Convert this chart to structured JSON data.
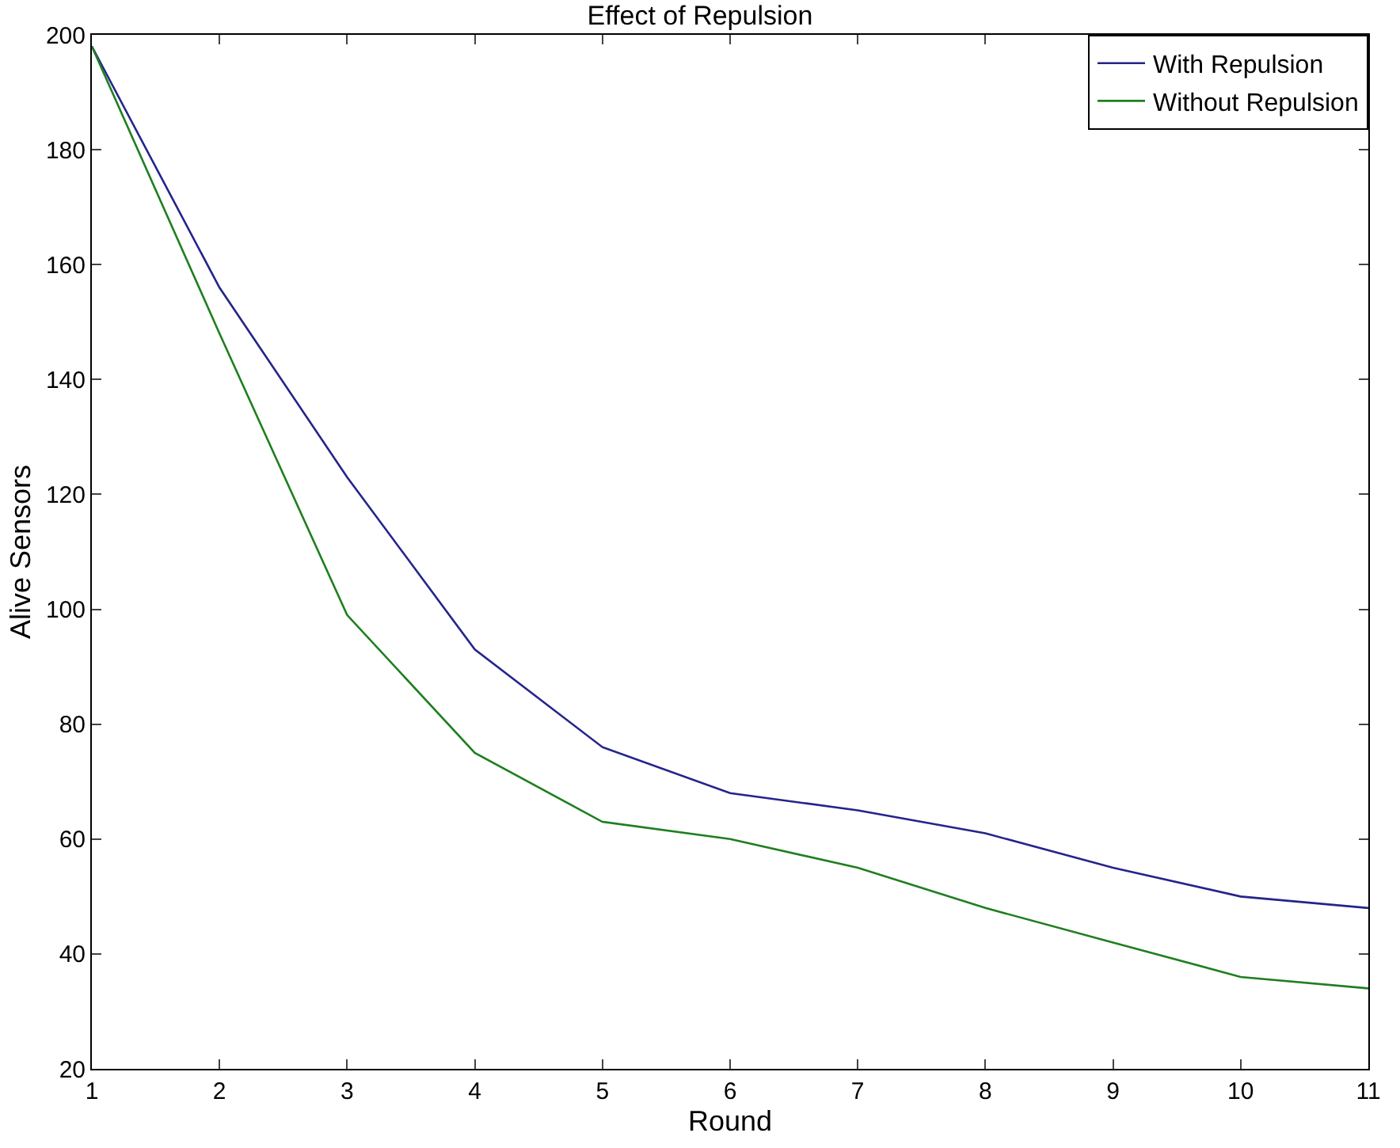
{
  "chart_data": {
    "type": "line",
    "title": "Effect of Repulsion",
    "xlabel": "Round",
    "ylabel": "Alive Sensors",
    "x": [
      1,
      2,
      3,
      4,
      5,
      6,
      7,
      8,
      9,
      10,
      11
    ],
    "series": [
      {
        "name": "With Repulsion",
        "color": "#24248c",
        "values": [
          198,
          156,
          123,
          93,
          76,
          68,
          65,
          61,
          55,
          50,
          48
        ]
      },
      {
        "name": "Without Repulsion",
        "color": "#1f7f1f",
        "values": [
          198,
          148,
          99,
          75,
          63,
          60,
          55,
          48,
          42,
          36,
          34
        ]
      }
    ],
    "xlim": [
      1,
      11
    ],
    "xticks": [
      1,
      2,
      3,
      4,
      5,
      6,
      7,
      8,
      9,
      10,
      11
    ],
    "ylim": [
      20,
      200
    ],
    "yticks": [
      20,
      40,
      60,
      80,
      100,
      120,
      140,
      160,
      180,
      200
    ],
    "legend": "top right",
    "marker": "none",
    "line_style": "solid"
  }
}
